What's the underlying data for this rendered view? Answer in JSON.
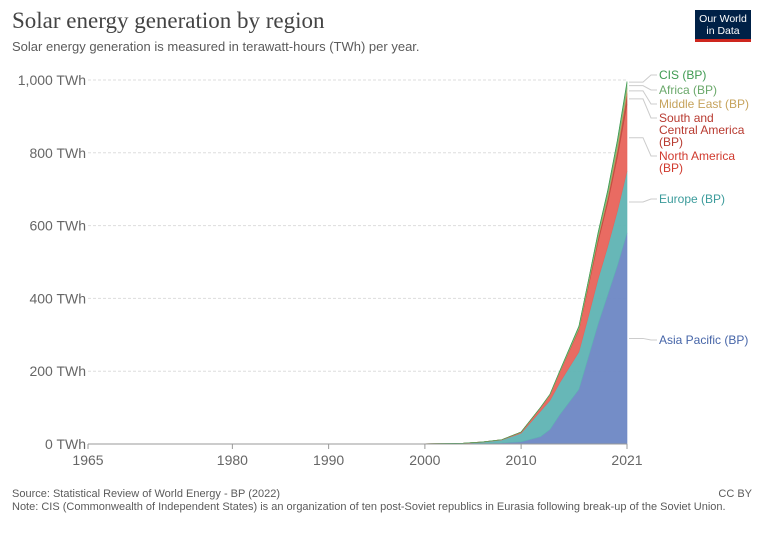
{
  "header": {
    "title": "Solar energy generation by region",
    "subtitle": "Solar energy generation is measured in terawatt-hours (TWh) per year.",
    "logo_line1": "Our World",
    "logo_line2": "in Data"
  },
  "footer": {
    "source": "Source: Statistical Review of World Energy - BP (2022)",
    "license": "CC BY",
    "note": "Note: CIS (Commonwealth of Independent States) is an organization of ten post-Soviet republics in Eurasia following break-up of the Soviet Union."
  },
  "chart_data": {
    "type": "area",
    "stacked": true,
    "x": [
      1965,
      1990,
      2000,
      2004,
      2006,
      2008,
      2010,
      2012,
      2013,
      2014,
      2016,
      2017,
      2018,
      2019,
      2020,
      2021
    ],
    "xlim": [
      1965,
      2021
    ],
    "ylim": [
      0,
      1000
    ],
    "y_ticks": [
      0,
      200,
      400,
      600,
      800,
      1000
    ],
    "y_tick_labels": [
      "0 TWh",
      "200 TWh",
      "400 TWh",
      "600 TWh",
      "800 TWh",
      "1,000 TWh"
    ],
    "x_ticks": [
      1965,
      1980,
      1990,
      2000,
      2010,
      2021
    ],
    "x_tick_labels": [
      "1965",
      "1980",
      "1990",
      "2000",
      "2010",
      "2021"
    ],
    "grid": "horizontal-dashed",
    "legend": "right-labels",
    "series": [
      {
        "name": "Asia Pacific (BP)",
        "color": "#6d87c4",
        "values": [
          0,
          0.1,
          0.4,
          1,
          2,
          3,
          6,
          20,
          40,
          80,
          150,
          240,
          330,
          410,
          490,
          580
        ]
      },
      {
        "name": "Europe (BP)",
        "color": "#5fb3b3",
        "values": [
          0,
          0,
          0.1,
          1,
          3,
          8,
          24,
          70,
          80,
          88,
          103,
          112,
          124,
          133,
          150,
          170
        ]
      },
      {
        "name": "North America (BP)",
        "color": "#e8635a",
        "values": [
          0,
          0,
          0.2,
          0.4,
          0.6,
          1,
          3,
          9,
          15,
          28,
          60,
          82,
          102,
          120,
          148,
          183
        ]
      },
      {
        "name": "South and Central America (BP)",
        "color": "#c04b40",
        "values": [
          0,
          0,
          0,
          0,
          0,
          0,
          0,
          0.3,
          0.5,
          1,
          3,
          6,
          10,
          14,
          20,
          30
        ]
      },
      {
        "name": "Middle East (BP)",
        "color": "#c6a35c",
        "values": [
          0,
          0,
          0,
          0,
          0,
          0,
          0,
          0.3,
          0.5,
          1,
          2,
          3,
          5,
          7,
          11,
          14
        ]
      },
      {
        "name": "Africa (BP)",
        "color": "#7fb77e",
        "values": [
          0,
          0,
          0,
          0,
          0,
          0,
          0,
          0.5,
          1,
          2,
          5,
          7,
          9,
          11,
          13,
          15
        ]
      },
      {
        "name": "CIS (BP)",
        "color": "#3f9b52",
        "values": [
          0,
          0,
          0,
          0,
          0,
          0,
          0,
          0,
          0,
          0.3,
          0.8,
          1,
          2,
          3,
          3.5,
          4
        ]
      }
    ],
    "label_lines": [
      [
        "CIS (BP)"
      ],
      [
        "Africa (BP)"
      ],
      [
        "Middle East (BP)"
      ],
      [
        "South and",
        "Central America",
        "(BP)"
      ],
      [
        "North America",
        "(BP)"
      ],
      [
        "Europe (BP)"
      ],
      [
        "Asia Pacific (BP)"
      ]
    ],
    "label_colors": [
      "#3f9b52",
      "#6aa86a",
      "#c6a35c",
      "#b83a30",
      "#d03a2e",
      "#3b9b9b",
      "#4665a8"
    ]
  }
}
